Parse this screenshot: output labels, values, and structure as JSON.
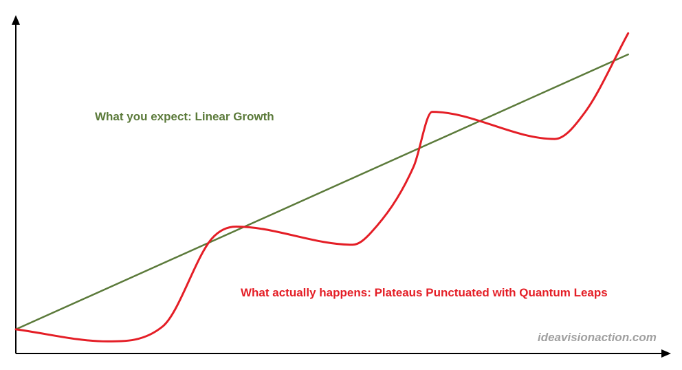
{
  "chart_data": {
    "type": "line",
    "title": "",
    "xlabel": "",
    "ylabel": "",
    "axes": {
      "ticks": false,
      "grid": false,
      "arrows": true
    },
    "series": [
      {
        "key": "expected",
        "label": "What you expect: Linear Growth",
        "color": "#5b7a3a",
        "shape": "straight",
        "x": [
          0,
          100
        ],
        "y": [
          8,
          99
        ]
      },
      {
        "key": "actual",
        "label": "What actually happens: Plateaus Punctuated with Quantum Leaps",
        "color": "#e41e26",
        "shape": "smooth",
        "x": [
          0,
          15,
          24,
          32,
          36,
          55,
          58,
          65,
          68,
          88,
          93,
          100
        ],
        "y": [
          8,
          4,
          9,
          38,
          42,
          36,
          40,
          62,
          80,
          71,
          80,
          106
        ]
      }
    ],
    "x_range": [
      0,
      107
    ],
    "y_range": [
      0,
      112
    ]
  },
  "watermark": {
    "text": "ideavisionaction.com",
    "color": "#a0a0a0"
  }
}
